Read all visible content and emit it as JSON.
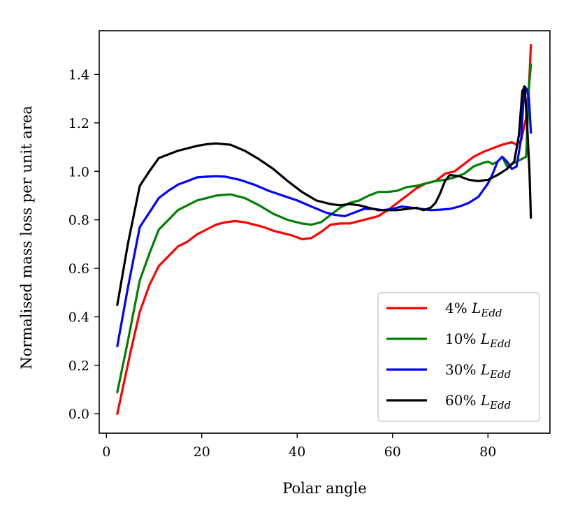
{
  "chart_data": {
    "type": "line",
    "title": "",
    "xlabel": "Polar angle",
    "ylabel": "Normalised mass loss per unit area",
    "xlim": [
      -1.5,
      93
    ],
    "ylim": [
      -0.08,
      1.58
    ],
    "xticks": [
      0,
      20,
      40,
      60,
      80
    ],
    "yticks": [
      0.0,
      0.2,
      0.4,
      0.6,
      0.8,
      1.0,
      1.2,
      1.4
    ],
    "grid": false,
    "legend_position": "lower-right",
    "series": [
      {
        "name": "4% L_Edd",
        "label_main": "4% ",
        "label_var": "L",
        "label_sub": "Edd",
        "color": "#ff0000",
        "x": [
          2.3,
          5.0,
          7.0,
          9.0,
          11.0,
          13.0,
          15.0,
          17.0,
          19.0,
          21.0,
          23.0,
          25.0,
          27.0,
          29.0,
          31.0,
          33.0,
          35.0,
          37.0,
          39.0,
          41.0,
          43.0,
          45.0,
          47.0,
          49.0,
          51.0,
          53.0,
          55.0,
          57.0,
          59.0,
          61.0,
          63.0,
          65.0,
          67.0,
          69.0,
          71.0,
          73.0,
          75.0,
          77.0,
          79.0,
          81.0,
          83.0,
          84.0,
          85.0,
          86.0,
          87.0,
          88.0,
          88.6,
          89.0
        ],
        "y": [
          0.0,
          0.25,
          0.42,
          0.53,
          0.61,
          0.65,
          0.69,
          0.71,
          0.74,
          0.76,
          0.78,
          0.79,
          0.795,
          0.79,
          0.78,
          0.77,
          0.755,
          0.745,
          0.735,
          0.72,
          0.725,
          0.75,
          0.78,
          0.785,
          0.785,
          0.795,
          0.805,
          0.815,
          0.84,
          0.87,
          0.9,
          0.93,
          0.95,
          0.96,
          0.99,
          1.0,
          1.03,
          1.06,
          1.08,
          1.095,
          1.11,
          1.115,
          1.12,
          1.11,
          1.13,
          1.22,
          1.35,
          1.52
        ]
      },
      {
        "name": "10% L_Edd",
        "label_main": "10% ",
        "label_var": "L",
        "label_sub": "Edd",
        "color": "#008000",
        "x": [
          2.3,
          4.5,
          7.0,
          9.0,
          11.0,
          13.0,
          15.0,
          17.0,
          19.0,
          21.0,
          23.0,
          26.0,
          29.0,
          32.0,
          35.0,
          38.0,
          41.0,
          43.0,
          45.0,
          47.0,
          49.0,
          51.0,
          53.0,
          55.0,
          57.0,
          59.0,
          61.0,
          63.0,
          65.0,
          67.0,
          69.0,
          71.0,
          73.0,
          75.0,
          77.0,
          79.0,
          80.0,
          81.0,
          82.0,
          83.0,
          84.0,
          85.0,
          86.0,
          87.0,
          88.0,
          88.6,
          89.0
        ],
        "y": [
          0.09,
          0.3,
          0.55,
          0.66,
          0.76,
          0.8,
          0.84,
          0.86,
          0.88,
          0.89,
          0.9,
          0.905,
          0.89,
          0.86,
          0.825,
          0.8,
          0.785,
          0.78,
          0.79,
          0.82,
          0.85,
          0.87,
          0.88,
          0.9,
          0.915,
          0.915,
          0.92,
          0.935,
          0.94,
          0.95,
          0.96,
          0.965,
          0.975,
          0.99,
          1.02,
          1.035,
          1.04,
          1.03,
          1.04,
          1.06,
          1.02,
          1.03,
          1.04,
          1.05,
          1.06,
          1.35,
          1.44
        ]
      },
      {
        "name": "30% L_Edd",
        "label_main": "30% ",
        "label_var": "L",
        "label_sub": "Edd",
        "color": "#0000ff",
        "x": [
          2.3,
          4.5,
          7.0,
          9.0,
          11.0,
          13.0,
          15.0,
          17.0,
          19.0,
          21.0,
          23.0,
          25.0,
          28.0,
          31.0,
          34.0,
          37.0,
          40.0,
          43.0,
          46.0,
          48.0,
          50.0,
          52.0,
          54.0,
          56.0,
          58.0,
          60.0,
          62.0,
          64.0,
          66.0,
          68.0,
          70.0,
          72.0,
          74.0,
          76.0,
          78.0,
          80.0,
          81.0,
          82.0,
          83.0,
          84.0,
          85.0,
          86.0,
          87.0,
          87.6,
          88.1,
          88.6,
          89.0
        ],
        "y": [
          0.28,
          0.52,
          0.77,
          0.83,
          0.89,
          0.92,
          0.945,
          0.96,
          0.975,
          0.978,
          0.98,
          0.978,
          0.965,
          0.945,
          0.92,
          0.9,
          0.88,
          0.855,
          0.83,
          0.82,
          0.815,
          0.83,
          0.845,
          0.845,
          0.84,
          0.845,
          0.855,
          0.85,
          0.845,
          0.84,
          0.842,
          0.845,
          0.855,
          0.87,
          0.895,
          0.95,
          0.99,
          1.04,
          1.06,
          1.04,
          1.01,
          1.02,
          1.14,
          1.35,
          1.34,
          1.3,
          1.16
        ]
      },
      {
        "name": "60% L_Edd",
        "label_main": "60% ",
        "label_var": "L",
        "label_sub": "Edd",
        "color": "#000000",
        "x": [
          2.3,
          4.5,
          7.0,
          9.0,
          11.0,
          13.0,
          15.0,
          17.0,
          19.0,
          21.0,
          23.0,
          26.0,
          29.0,
          32.0,
          35.0,
          38.0,
          41.0,
          44.0,
          47.0,
          49.0,
          51.0,
          53.0,
          55.0,
          57.0,
          59.0,
          61.0,
          63.0,
          65.0,
          66.5,
          68.0,
          69.0,
          70.0,
          71.0,
          72.0,
          74.0,
          76.0,
          78.0,
          80.0,
          82.0,
          84.0,
          85.5,
          86.5,
          87.2,
          87.7,
          88.2,
          88.7,
          89.0
        ],
        "y": [
          0.45,
          0.7,
          0.94,
          1.0,
          1.055,
          1.07,
          1.085,
          1.095,
          1.105,
          1.112,
          1.115,
          1.11,
          1.085,
          1.05,
          1.01,
          0.96,
          0.915,
          0.88,
          0.865,
          0.86,
          0.865,
          0.86,
          0.85,
          0.84,
          0.84,
          0.84,
          0.845,
          0.85,
          0.84,
          0.85,
          0.87,
          0.91,
          0.96,
          0.985,
          0.98,
          0.965,
          0.96,
          0.965,
          0.985,
          1.01,
          1.04,
          1.15,
          1.33,
          1.35,
          1.2,
          1.0,
          0.81
        ]
      }
    ]
  }
}
